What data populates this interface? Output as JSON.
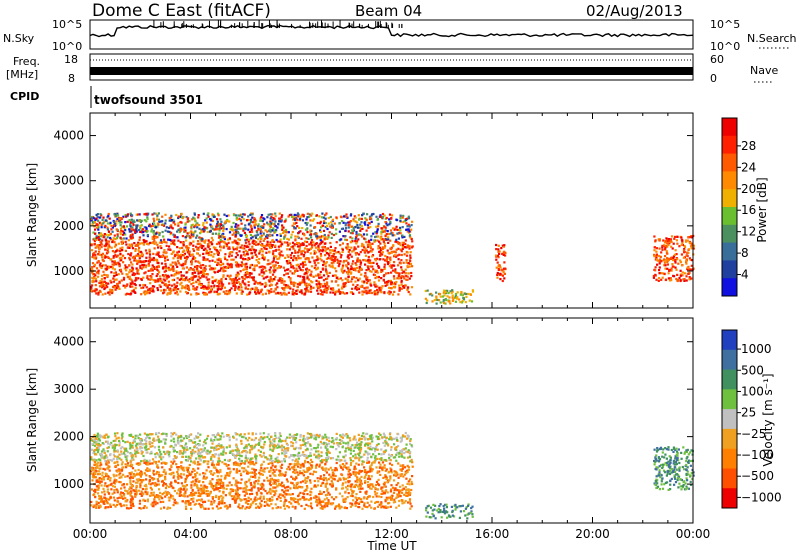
{
  "header": {
    "title": "Dome C East (fitACF)",
    "beam": "Beam 04",
    "date": "02/Aug/2013"
  },
  "top_panels": {
    "nsky_label": "N.Sky",
    "nsky_ticks": [
      "10^5",
      "10^0"
    ],
    "nsearch_label": "N.Search",
    "nsearch_ticks": [
      "10^5",
      "10^0"
    ],
    "freq_label_line1": "Freq.",
    "freq_label_line2": "[MHz]",
    "freq_ticks": [
      "18",
      "8"
    ],
    "nave_label": "Nave",
    "nave_ticks": [
      "60",
      "0"
    ],
    "cpid_label": "CPID",
    "cpid_value": "twofsound 3501"
  },
  "colors": {
    "power": [
      "#1010e0",
      "#2040a0",
      "#3a6e9a",
      "#4c9060",
      "#6abf30",
      "#f0b000",
      "#ff8a00",
      "#ff5a00",
      "#ff2000",
      "#ee0000"
    ],
    "velocity": [
      "#2040c0",
      "#4070a0",
      "#409060",
      "#70c040",
      "#c0c0c0",
      "#f0a020",
      "#ff8000",
      "#ff5000",
      "#ee0000"
    ]
  },
  "chart_data": [
    {
      "type": "heatmap",
      "panel": "power",
      "ylabel": "Slant Range [km]",
      "yticks": [
        "1000",
        "2000",
        "3000",
        "4000"
      ],
      "xticks": [
        "00:00",
        "04:00",
        "08:00",
        "12:00",
        "16:00",
        "20:00",
        "00:00"
      ],
      "xlabel": "",
      "colorbar_label": "Power [dB]",
      "colorbar_ticks": [
        "4",
        "8",
        "12",
        "16",
        "20",
        "24",
        "28"
      ],
      "ylim": [
        180,
        4500
      ],
      "xlim_hours": [
        0,
        24
      ],
      "echo_regions_hours_km": [
        {
          "x": [
            0,
            12.8
          ],
          "y": [
            500,
            1700
          ],
          "level": "high"
        },
        {
          "x": [
            0,
            12.8
          ],
          "y": [
            1700,
            2300
          ],
          "level": "mixed"
        },
        {
          "x": [
            13.3,
            15.2
          ],
          "y": [
            300,
            600
          ],
          "level": "medium"
        },
        {
          "x": [
            16.1,
            16.5
          ],
          "y": [
            800,
            1600
          ],
          "level": "high"
        },
        {
          "x": [
            22.4,
            24
          ],
          "y": [
            800,
            1800
          ],
          "level": "high"
        }
      ]
    },
    {
      "type": "heatmap",
      "panel": "velocity",
      "ylabel": "Slant Range [km]",
      "yticks": [
        "1000",
        "2000",
        "3000",
        "4000"
      ],
      "xticks": [
        "00:00",
        "04:00",
        "08:00",
        "12:00",
        "16:00",
        "20:00",
        "00:00"
      ],
      "xlabel": "Time UT",
      "colorbar_label": "Velocity [m s⁻¹]",
      "colorbar_ticks": [
        "1000",
        "500",
        "100",
        "25",
        "−25",
        "−100",
        "−500",
        "−1000"
      ],
      "ylim": [
        180,
        4500
      ],
      "xlim_hours": [
        0,
        24
      ],
      "echo_regions_hours_km": [
        {
          "x": [
            0,
            12.8
          ],
          "y": [
            500,
            1500
          ],
          "level": "-100 to -500"
        },
        {
          "x": [
            0,
            12.8
          ],
          "y": [
            1500,
            2100
          ],
          "level": "-25 to 25"
        },
        {
          "x": [
            13.3,
            15.2
          ],
          "y": [
            300,
            600
          ],
          "level": "100"
        },
        {
          "x": [
            22.4,
            24
          ],
          "y": [
            900,
            1800
          ],
          "level": "100 to 500"
        }
      ]
    }
  ]
}
